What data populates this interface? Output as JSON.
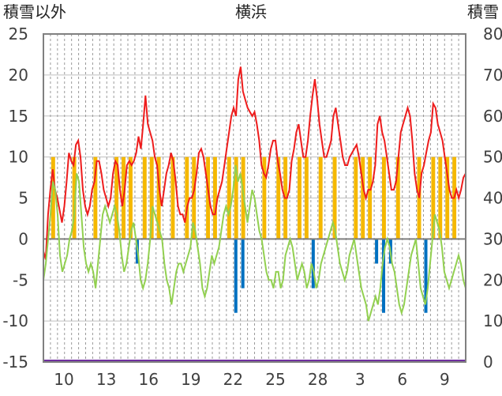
{
  "chart_data": {
    "type": "line",
    "title": "横浜",
    "y_left_label": "積雪以外",
    "y_right_label": "積雪",
    "y_left_range": [
      -15,
      25
    ],
    "y_left_ticks": [
      "25",
      "20",
      "15",
      "10",
      "5",
      "0",
      "-5",
      "-10",
      "-15"
    ],
    "y_right_range": [
      0,
      80
    ],
    "y_right_ticks": [
      "80",
      "70",
      "60",
      "50",
      "40",
      "30",
      "20",
      "10",
      "0"
    ],
    "x_tick_labels": [
      "10",
      "13",
      "16",
      "19",
      "22",
      "25",
      "28",
      "3",
      "6",
      "9"
    ],
    "grid": true,
    "colors": {
      "sunshine": "#f5b800",
      "precipitation": "#0070c0",
      "max_temp": "#ee1c1c",
      "min_temp": "#92d050",
      "snow": "#7030a0",
      "zero_line": "#7f7f7f"
    },
    "series": [
      {
        "key": "max_temp",
        "axis": "left",
        "values": [
          -1.5,
          -2.5,
          3,
          6,
          8.5,
          6,
          5,
          3.5,
          2,
          4,
          7,
          10.5,
          9.5,
          9,
          11.5,
          12,
          10,
          6,
          4,
          3,
          4,
          6,
          7,
          9.5,
          9.5,
          8,
          6,
          5,
          4,
          5,
          8,
          9.5,
          9,
          6,
          4,
          6,
          9,
          9.5,
          9,
          9.5,
          10.5,
          12.5,
          11,
          14,
          17.5,
          14,
          13,
          12,
          10,
          9,
          6,
          4,
          6,
          8,
          9,
          10.5,
          9.5,
          7,
          4,
          3,
          3,
          2,
          4,
          5,
          5,
          6,
          8,
          10.5,
          11,
          10,
          8,
          6,
          4,
          3,
          3,
          5,
          6,
          7,
          9,
          11,
          13,
          15,
          16,
          15,
          19.5,
          21,
          18,
          17,
          16,
          15.5,
          15,
          15.5,
          14,
          12,
          9,
          8,
          7.5,
          9,
          11,
          12,
          12,
          9.5,
          8,
          6,
          5,
          5,
          6,
          9.5,
          11,
          13,
          14,
          12,
          10,
          10,
          12,
          15,
          17.5,
          19.5,
          17,
          14,
          12,
          10,
          10,
          11,
          12,
          15,
          16,
          14,
          12,
          10,
          9,
          9,
          10,
          10.5,
          11,
          11.5,
          10,
          8,
          6,
          5,
          6,
          6,
          7,
          9,
          14,
          15,
          13,
          12,
          10,
          8,
          6,
          6,
          7,
          10,
          13,
          14,
          15,
          16,
          15,
          12,
          8,
          6,
          5,
          8,
          9,
          10.5,
          12,
          13,
          16.5,
          16,
          14,
          13,
          12,
          10,
          8,
          6,
          5,
          5,
          6,
          5,
          6,
          7.5,
          8
        ],
        "markers": []
      },
      {
        "key": "min_temp",
        "axis": "left",
        "values": [
          -5,
          -3,
          0,
          3,
          7,
          6,
          3,
          -2,
          -4,
          -3,
          -2,
          0,
          1,
          3,
          8,
          7,
          3,
          -1,
          -3,
          -4,
          -3,
          -4,
          -6,
          -3,
          0,
          3,
          4,
          3,
          2,
          3,
          4,
          3,
          1,
          -2,
          -4,
          -3,
          -1,
          1,
          2,
          0,
          -2,
          -5,
          -6,
          -5,
          -3,
          0,
          4,
          3,
          2,
          1,
          0,
          -3,
          -5,
          -6,
          -8,
          -6,
          -4,
          -3,
          -3,
          -4,
          -3,
          -2,
          -1,
          2,
          1,
          -1,
          -3,
          -6,
          -7,
          -6,
          -4,
          -2,
          -3,
          -2,
          -1,
          1,
          3,
          4,
          3,
          4,
          6,
          9,
          7,
          8,
          6,
          4,
          2,
          4,
          6,
          5,
          3,
          1,
          0,
          -2,
          -4,
          -5,
          -5,
          -6,
          -4,
          -4,
          -6,
          -5,
          -2,
          -1,
          0,
          -1,
          -3,
          -5,
          -4,
          -3,
          -4,
          -6,
          -5,
          -3,
          -4,
          -6,
          -5,
          -3,
          -2,
          -1,
          0,
          1,
          2,
          1,
          -1,
          -3,
          -4,
          -5,
          -4,
          -2,
          -1,
          0,
          -2,
          -4,
          -6,
          -7,
          -8,
          -10,
          -9,
          -8,
          -7,
          -8,
          -6,
          -3,
          -1,
          0,
          -1,
          -3,
          -4,
          -6,
          -8,
          -9,
          -8,
          -6,
          -4,
          -2,
          -1,
          0,
          -3,
          -6,
          -7,
          -8,
          -6,
          -3,
          0,
          3,
          2,
          1,
          -1,
          -4,
          -5,
          -6,
          -5,
          -4,
          -3,
          -2,
          -3,
          -5,
          -6
        ],
        "markers": []
      }
    ],
    "bars": [
      {
        "key": "sunshine",
        "axis": "left",
        "days": [
          1,
          4,
          7,
          10,
          11,
          12,
          14,
          15,
          16,
          18,
          20,
          21,
          23,
          24,
          26,
          27,
          28,
          31,
          33,
          34,
          36,
          37,
          39,
          41,
          44,
          45,
          46,
          48,
          50,
          53,
          55,
          56,
          57,
          58
        ]
      },
      {
        "key": "precipitation",
        "axis": "left",
        "days": [
          13,
          27,
          28,
          38,
          47,
          48,
          49,
          54
        ]
      }
    ],
    "snow_depth": {
      "axis": "right",
      "value": 0
    }
  }
}
